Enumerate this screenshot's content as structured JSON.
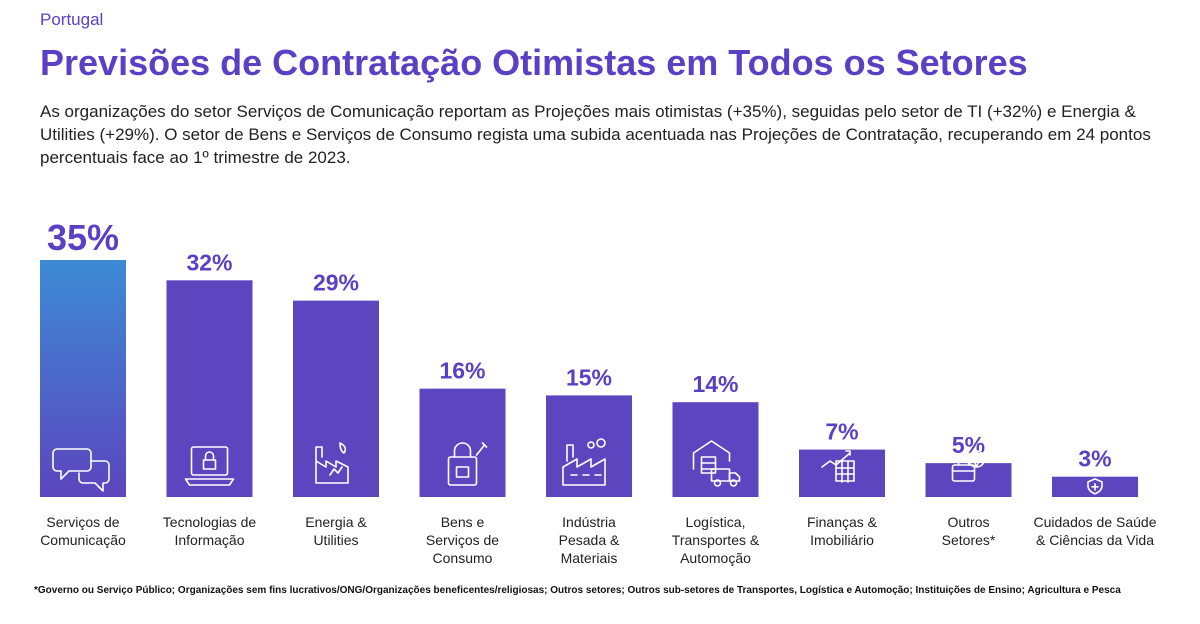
{
  "header": {
    "country": "Portugal",
    "title": "Previsões de Contratação Otimistas em Todos os Setores",
    "subtitle": "As organizações do setor Serviços de Comunicação reportam as Projeções mais otimistas (+35%), seguidas pelo setor de TI (+32%) e Energia & Utilities (+29%). O setor de Bens e Serviços de Consumo regista uma subida acentuada nas Projeções de Contratação, recuperando em 24 pontos percentuais face ao 1º trimestre de 2023."
  },
  "chart_data": {
    "type": "bar",
    "categories": [
      "Serviços de Comunicação",
      "Tecnologias de Informação",
      "Energia & Utilities",
      "Bens e Serviços de Consumo",
      "Indústria Pesada & Materiais",
      "Logística, Transportes & Automoção",
      "Finanças & Imobiliário",
      "Outros Setores*",
      "Cuidados de Saúde & Ciências da Vida"
    ],
    "category_lines": [
      [
        "Serviços de",
        "Comunicação"
      ],
      [
        "Tecnologias de",
        "Informação"
      ],
      [
        "Energia &",
        "Utilities"
      ],
      [
        "Bens e",
        "Serviços de",
        "Consumo"
      ],
      [
        "Indústria",
        "Pesada &",
        "Materiais"
      ],
      [
        "Logística,",
        "Transportes &",
        "Automoção"
      ],
      [
        "Finanças &",
        "Imobiliário"
      ],
      [
        "Outros",
        "Setores*"
      ],
      [
        "Cuidados de Saúde",
        "& Ciências da Vida"
      ]
    ],
    "values": [
      35,
      32,
      29,
      16,
      15,
      14,
      7,
      5,
      3
    ],
    "value_labels": [
      "35%",
      "32%",
      "29%",
      "16%",
      "15%",
      "14%",
      "7%",
      "5%",
      "3%"
    ],
    "icons": [
      "chat-bubbles-icon",
      "laptop-lock-icon",
      "energy-factory-icon",
      "shopping-bag-icon",
      "factory-icon",
      "warehouse-truck-icon",
      "building-chart-icon",
      "briefcase-globe-icon",
      "shield-cross-icon"
    ],
    "colors": {
      "bar": "#5c45be",
      "highlight_top": "#3d8bd4",
      "highlight_bottom": "#5c45be",
      "value_text": "#5b3fc4"
    },
    "ylim": [
      0,
      35
    ],
    "grid": false,
    "legend": "none"
  },
  "footnote": "*Governo ou Serviço Público; Organizações sem fins lucrativos/ONG/Organizações beneficentes/religiosas; Outros setores; Outros sub-setores de Transportes, Logística e Automoção; Instituições de Ensino; Agricultura e Pesca"
}
